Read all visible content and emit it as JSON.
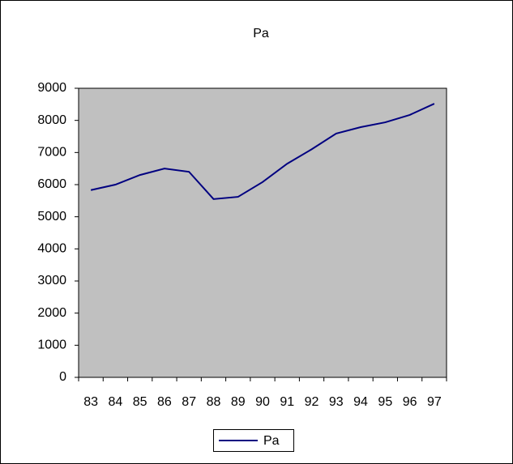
{
  "chart_data": {
    "type": "line",
    "title": "Pa",
    "categories": [
      "83",
      "84",
      "85",
      "86",
      "87",
      "88",
      "89",
      "90",
      "91",
      "92",
      "93",
      "94",
      "95",
      "96",
      "97"
    ],
    "series": [
      {
        "name": "Pa",
        "color": "#000080",
        "values": [
          5830,
          6000,
          6300,
          6500,
          6400,
          5550,
          5620,
          6080,
          6650,
          7100,
          7590,
          7790,
          7940,
          8170,
          8520
        ]
      }
    ],
    "ylim": [
      0,
      9000
    ],
    "yticks": [
      0,
      1000,
      2000,
      3000,
      4000,
      5000,
      6000,
      7000,
      8000,
      9000
    ],
    "plot_background": "#c0c0c0",
    "legend": "bottom"
  }
}
